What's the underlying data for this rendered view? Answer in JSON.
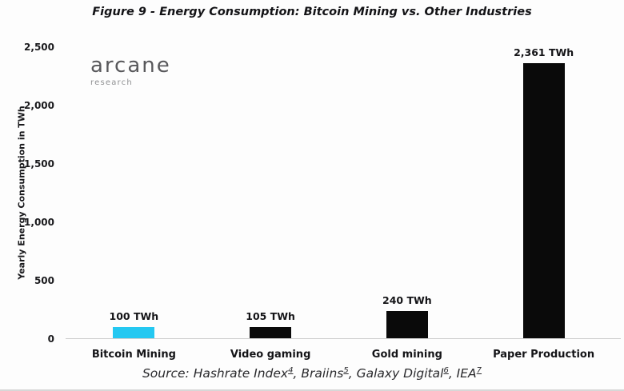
{
  "title": "Figure 9 - Energy Consumption: Bitcoin Mining vs. Other Industries",
  "logo": {
    "name": "arcane",
    "sub": "research"
  },
  "colors": {
    "bitcoin_bar": "#24c8f1",
    "default_bar": "#0a0a0a",
    "axis_line": "#cfcfcf",
    "background": "#fdfdfd"
  },
  "chart_data": {
    "type": "bar",
    "categories": [
      "Bitcoin Mining",
      "Video gaming",
      "Gold mining",
      "Paper Production"
    ],
    "values": [
      100,
      105,
      240,
      2361
    ],
    "value_labels": [
      "100 TWh",
      "105 TWh",
      "240 TWh",
      "2,361 TWh"
    ],
    "bar_colors": [
      "#24c8f1",
      "#0a0a0a",
      "#0a0a0a",
      "#0a0a0a"
    ],
    "title": "Figure 9 - Energy Consumption: Bitcoin Mining vs. Other Industries",
    "xlabel": "",
    "ylabel": "Yearly Energy Consumption in TWh",
    "ylim": [
      0,
      2500
    ],
    "yticks": [
      {
        "value": 2500,
        "label": "2,500"
      },
      {
        "value": 2000,
        "label": "2,000"
      },
      {
        "value": 1500,
        "label": "1,500"
      },
      {
        "value": 1000,
        "label": "1,000"
      },
      {
        "value": 500,
        "label": "500"
      },
      {
        "value": 0,
        "label": "0"
      }
    ],
    "grid": false,
    "legend": null
  },
  "source": {
    "segments": [
      {
        "t": "Source: Hashrate Index"
      },
      {
        "sup": "4"
      },
      {
        "t": ", Braiins"
      },
      {
        "sup": "5"
      },
      {
        "t": ", Galaxy Digital"
      },
      {
        "sup": "6"
      },
      {
        "t": ", IEA"
      },
      {
        "sup": "7"
      }
    ]
  }
}
